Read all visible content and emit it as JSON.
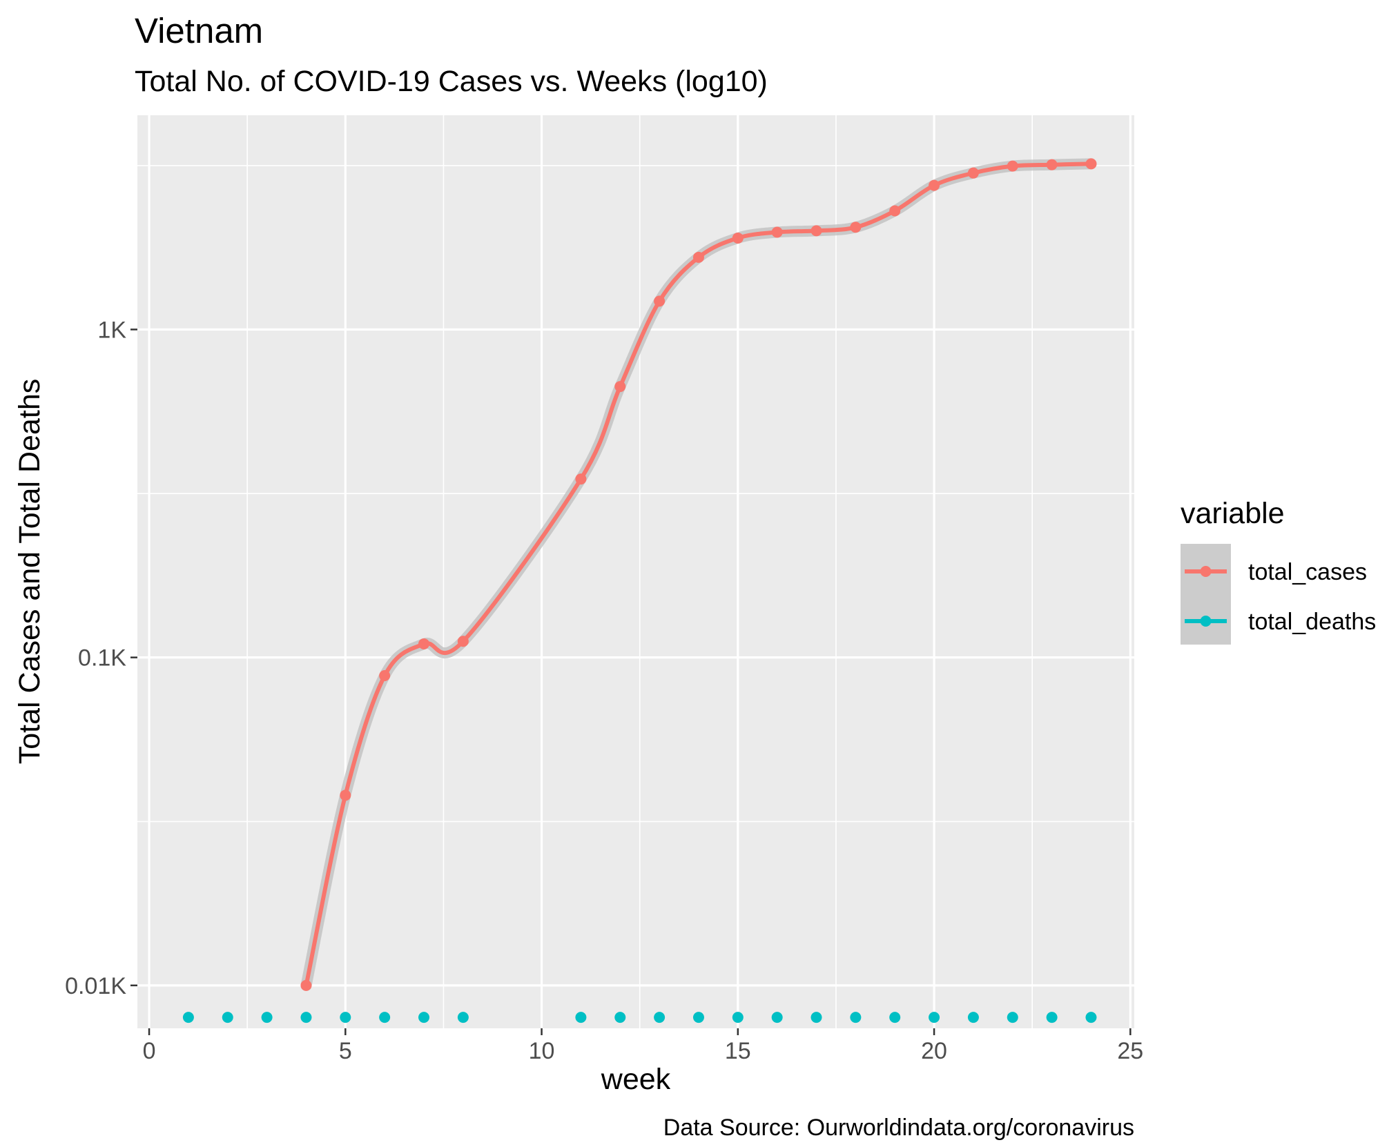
{
  "chart_data": {
    "type": "line",
    "title": "Vietnam",
    "subtitle": "Total No. of COVID-19 Cases vs. Weeks (log10)",
    "xlabel": "week",
    "ylabel": "Total Cases and Total Deaths",
    "caption": "Data Source: Ourworldindata.org/coronavirus",
    "x_scale": "linear",
    "y_scale": "log10",
    "xlim": [
      -0.3,
      25.1
    ],
    "ylim": [
      0.0074,
      4.5
    ],
    "x_ticks": [
      0,
      5,
      10,
      15,
      20,
      25
    ],
    "x_tick_labels": [
      "0",
      "5",
      "10",
      "15",
      "20",
      "25"
    ],
    "x_minor_ticks": [
      2.5,
      7.5,
      12.5,
      17.5,
      22.5
    ],
    "y_ticks": [
      0.01,
      0.1,
      1
    ],
    "y_tick_labels": [
      "0.01K",
      "0.1K",
      "1K"
    ],
    "y_minor_ticks": [
      0.0316,
      0.316,
      3.16
    ],
    "grid": true,
    "legend_title": "variable",
    "legend_position": "right",
    "series": [
      {
        "name": "total_cases",
        "color": "#F8766D",
        "smooth": true,
        "x": [
          4,
          5,
          6,
          7,
          8,
          11,
          12,
          13,
          14,
          15,
          16,
          17,
          18,
          19,
          20,
          21,
          22,
          23,
          24
        ],
        "values": [
          0.01,
          0.038,
          0.088,
          0.11,
          0.112,
          0.35,
          0.67,
          1.22,
          1.66,
          1.9,
          1.98,
          2.0,
          2.05,
          2.3,
          2.75,
          3.0,
          3.15,
          3.18,
          3.2
        ]
      },
      {
        "name": "total_deaths",
        "color": "#00BFC4",
        "smooth": false,
        "x": [
          1,
          2,
          3,
          4,
          5,
          6,
          7,
          8,
          11,
          12,
          13,
          14,
          15,
          16,
          17,
          18,
          19,
          20,
          21,
          22,
          23,
          24
        ],
        "values": [
          0,
          0,
          0,
          0,
          0,
          0,
          0,
          0,
          0,
          0,
          0,
          0,
          0,
          0,
          0,
          0,
          0,
          0,
          0,
          0,
          0,
          0
        ]
      }
    ]
  }
}
